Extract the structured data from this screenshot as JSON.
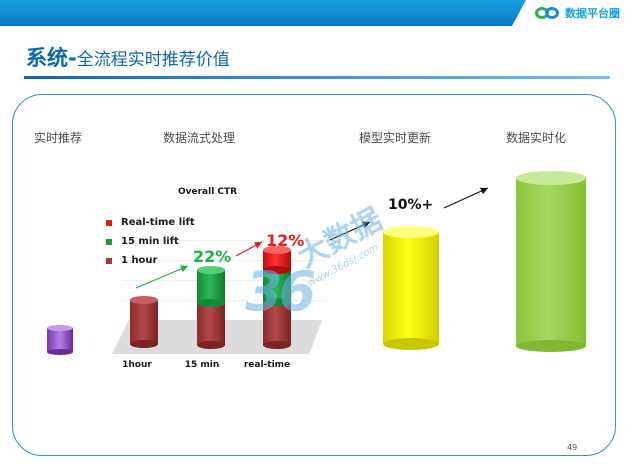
{
  "brand": {
    "logo_text": "数据平台圈"
  },
  "slide": {
    "title_main": "系统-",
    "title_sub": "全流程实时推荐价值",
    "page_number": "49"
  },
  "columns": {
    "realtime_rec": "实时推荐",
    "stream_processing": "数据流式处理",
    "model_update": "模型实时更新",
    "data_realtime": "数据实时化"
  },
  "chart_data": {
    "type": "bar",
    "title": "Overall CTR",
    "categories": [
      "1hour",
      "15 min",
      "real-time"
    ],
    "legend": [
      "Real-time lift",
      "15 min lift",
      "1 hour"
    ],
    "colors": {
      "real_time_lift": "#e01818",
      "min15_lift": "#1a9a3e",
      "hour1": "#a83a3a"
    },
    "annotations": [
      "22%",
      "12%"
    ]
  },
  "model_update_lift": "10%+",
  "watermark": {
    "text_36": "36",
    "text_big": "大数据",
    "url": "www.36dsj.com"
  }
}
